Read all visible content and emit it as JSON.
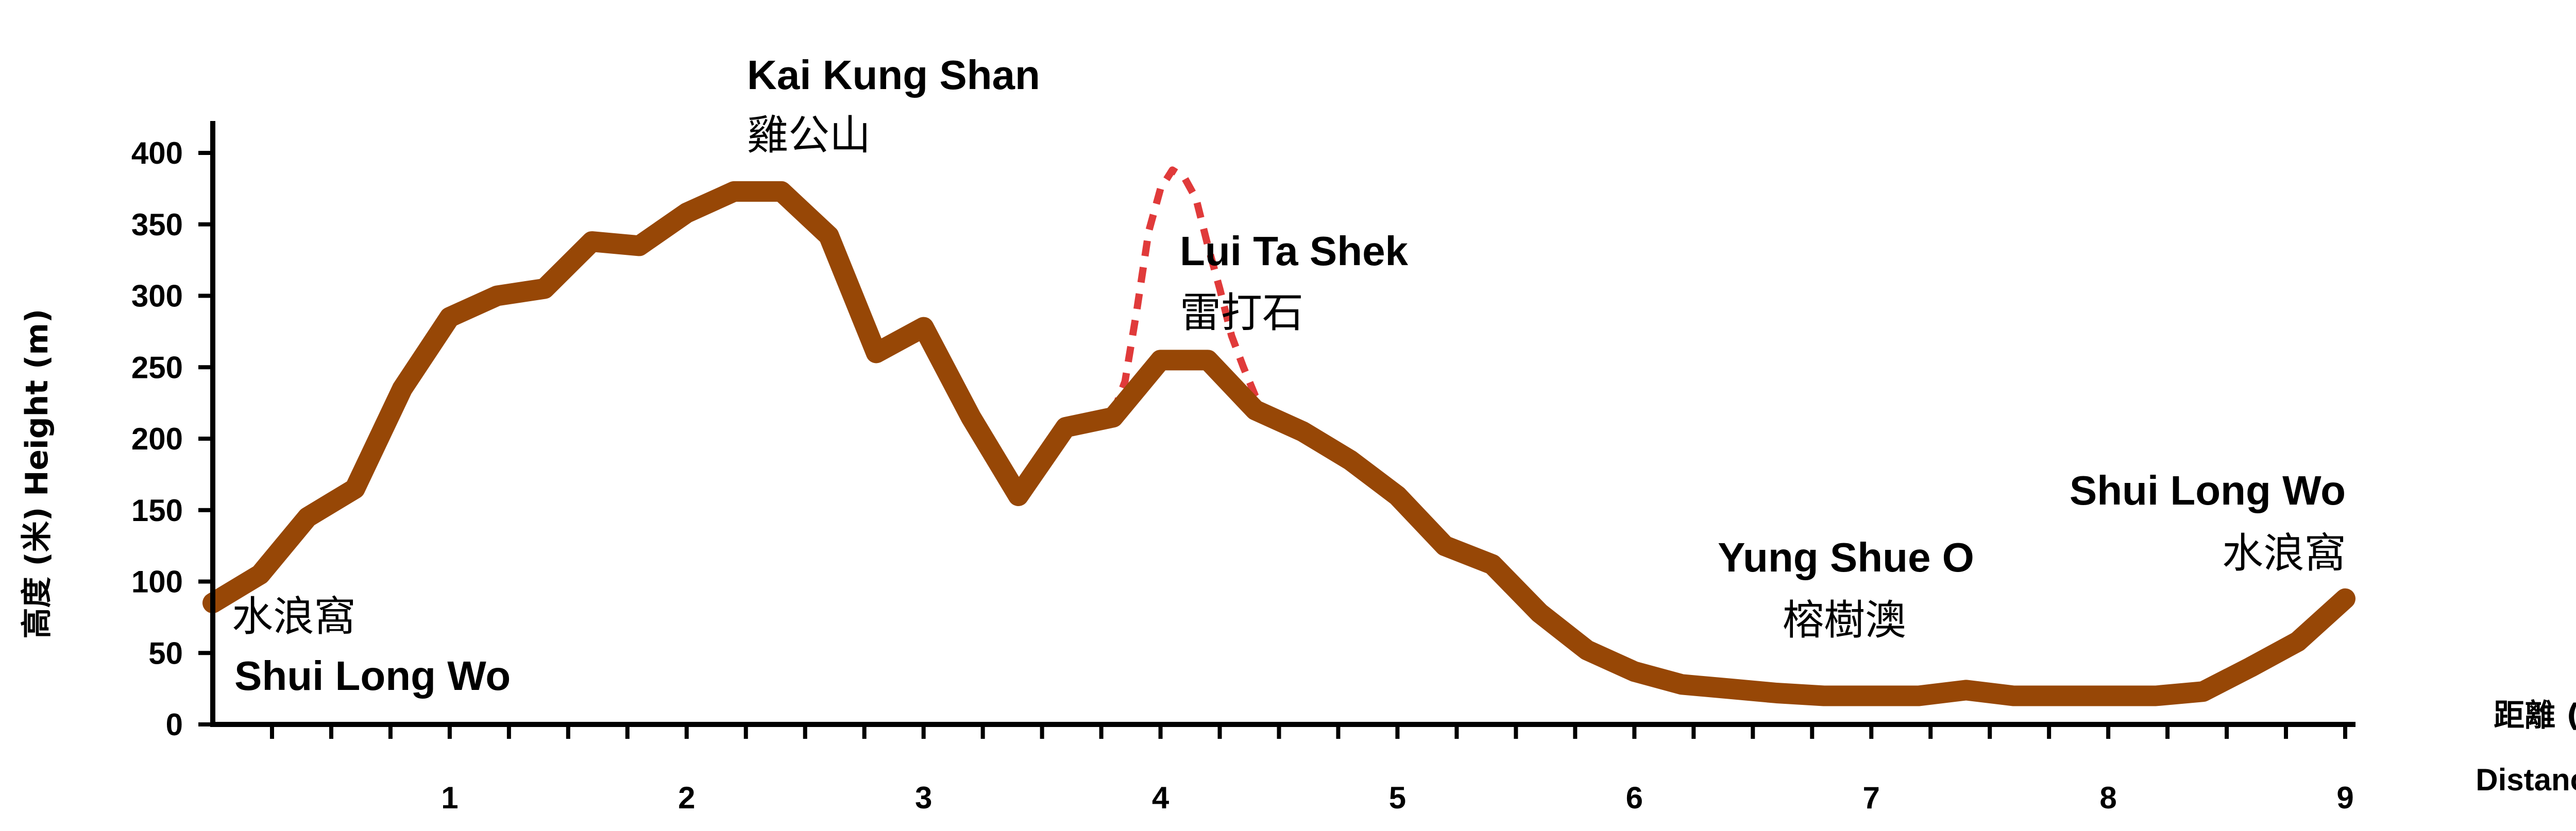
{
  "chart_data": {
    "type": "line",
    "xlabel": "Distance (km)",
    "xlabel_zh": "距離 (公里)",
    "ylabel": "高度 (米) Height (m)",
    "xlim": [
      0,
      9
    ],
    "ylim": [
      0,
      420
    ],
    "x_ticks": [
      1,
      2,
      3,
      4,
      5,
      6,
      7,
      8,
      9
    ],
    "y_ticks": [
      0,
      50,
      100,
      150,
      200,
      250,
      300,
      350,
      400
    ],
    "grid": false,
    "colors": {
      "main": "#974706",
      "alternate": "#e03a3a",
      "axis": "#000000"
    },
    "series": [
      {
        "style": "solid",
        "x": [
          0,
          0.2,
          0.4,
          0.6,
          0.8,
          1.0,
          1.2,
          1.4,
          1.6,
          1.8,
          2.0,
          2.2,
          2.4,
          2.6,
          2.8,
          3.0,
          3.2,
          3.4,
          3.6,
          3.8,
          4.0,
          4.2,
          4.4,
          4.6,
          4.8,
          5.0,
          5.2,
          5.4,
          5.6,
          5.8,
          6.0,
          6.2,
          6.4,
          6.6,
          6.8,
          7.0,
          7.2,
          7.4,
          7.6,
          7.8,
          8.0,
          8.2,
          8.4,
          8.6,
          8.8,
          9.0
        ],
        "y": [
          85,
          105,
          145,
          165,
          235,
          285,
          300,
          305,
          338,
          335,
          358,
          373,
          373,
          342,
          260,
          278,
          215,
          160,
          208,
          215,
          255,
          255,
          220,
          205,
          185,
          160,
          125,
          112,
          78,
          52,
          37,
          28,
          25,
          22,
          20,
          20,
          20,
          24,
          20,
          20,
          20,
          20,
          23,
          40,
          58,
          88
        ]
      },
      {
        "style": "dashed",
        "x": [
          3.8,
          3.85,
          3.9,
          3.95,
          4.0,
          4.05,
          4.1,
          4.15,
          4.2,
          4.25,
          4.3,
          4.35,
          4.4,
          4.45
        ],
        "y": [
          218,
          240,
          290,
          345,
          375,
          388,
          383,
          368,
          335,
          305,
          272,
          250,
          230,
          218
        ]
      }
    ],
    "annotations": [
      {
        "en": "Shui Long Wo",
        "zh": "水浪窩",
        "zh_first": true
      },
      {
        "en": "Kai Kung Shan",
        "zh": "雞公山",
        "zh_first": false
      },
      {
        "en": "Lui Ta Shek",
        "zh": "雷打石",
        "zh_first": false
      },
      {
        "en": "Yung Shue O",
        "zh": "榕樹澳",
        "zh_first": false
      },
      {
        "en": "Shui Long Wo",
        "zh": "水浪窩",
        "zh_first": false
      }
    ]
  }
}
